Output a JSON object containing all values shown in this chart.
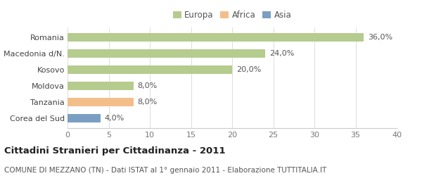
{
  "categories": [
    "Romania",
    "Macedonia d/N.",
    "Kosovo",
    "Moldova",
    "Tanzania",
    "Corea del Sud"
  ],
  "values": [
    36.0,
    24.0,
    20.0,
    8.0,
    8.0,
    4.0
  ],
  "labels": [
    "36,0%",
    "24,0%",
    "20,0%",
    "8,0%",
    "8,0%",
    "4,0%"
  ],
  "colors": [
    "#b5cc8e",
    "#b5cc8e",
    "#b5cc8e",
    "#b5cc8e",
    "#f4be8a",
    "#7a9fc2"
  ],
  "legend_items": [
    {
      "label": "Europa",
      "color": "#b5cc8e"
    },
    {
      "label": "Africa",
      "color": "#f4be8a"
    },
    {
      "label": "Asia",
      "color": "#7a9fc2"
    }
  ],
  "xlim": [
    0,
    40
  ],
  "xticks": [
    0,
    5,
    10,
    15,
    20,
    25,
    30,
    35,
    40
  ],
  "title": "Cittadini Stranieri per Cittadinanza - 2011",
  "subtitle": "COMUNE DI MEZZANO (TN) - Dati ISTAT al 1° gennaio 2011 - Elaborazione TUTTITALIA.IT",
  "background_color": "#ffffff",
  "bar_height": 0.5,
  "title_fontsize": 9.5,
  "subtitle_fontsize": 7.5,
  "label_fontsize": 8,
  "tick_fontsize": 8,
  "legend_fontsize": 8.5
}
